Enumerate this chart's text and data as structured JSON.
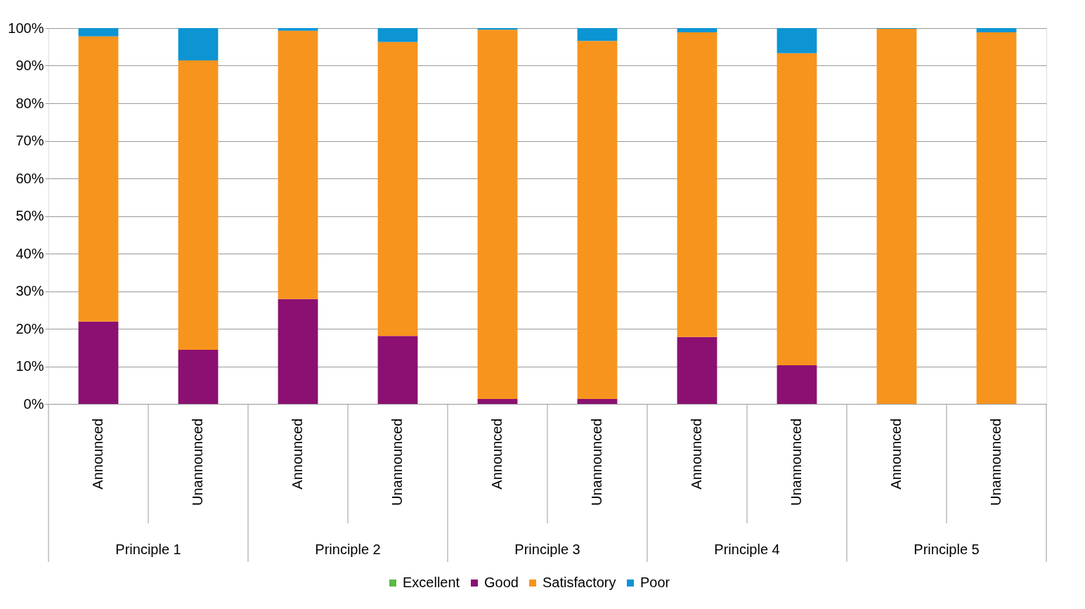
{
  "chart_data": {
    "type": "bar",
    "stacked": true,
    "categories": [
      "Announced",
      "Unannounced",
      "Announced",
      "Unannounced",
      "Announced",
      "Unannounced",
      "Announced",
      "Unannounced",
      "Announced",
      "Unannounced"
    ],
    "annotations": [
      "Principle 1",
      "Principle 2",
      "Principle 3",
      "Principle 4",
      "Principle 5"
    ],
    "series": [
      {
        "name": "Excellent",
        "color": "#5bb946",
        "values": [
          0,
          0,
          0,
          0,
          0,
          0,
          0,
          0,
          0,
          0
        ]
      },
      {
        "name": "Good",
        "color": "#8b1072",
        "values": [
          21.9,
          14.4,
          27.9,
          18.1,
          1.3,
          1.3,
          17.8,
          10.3,
          0,
          0
        ]
      },
      {
        "name": "Satisfactory",
        "color": "#f7941d",
        "values": [
          75.9,
          77.0,
          71.4,
          78.2,
          98.3,
          95.3,
          81.1,
          83.0,
          99.8,
          98.9
        ]
      },
      {
        "name": "Poor",
        "color": "#0d94d2",
        "values": [
          2.2,
          8.6,
          0.7,
          3.7,
          0.4,
          3.4,
          1.1,
          6.7,
          0.2,
          1.1
        ]
      }
    ],
    "ylim": [
      0,
      100
    ],
    "yticks": [
      {
        "value": 0,
        "label": "0%"
      },
      {
        "value": 10,
        "label": "10%"
      },
      {
        "value": 20,
        "label": "20%"
      },
      {
        "value": 30,
        "label": "30%"
      },
      {
        "value": 40,
        "label": "40%"
      },
      {
        "value": 50,
        "label": "50%"
      },
      {
        "value": 60,
        "label": "60%"
      },
      {
        "value": 70,
        "label": "70%"
      },
      {
        "value": 80,
        "label": "80%"
      },
      {
        "value": 90,
        "label": "90%"
      },
      {
        "value": 100,
        "label": "100%"
      }
    ],
    "grid": "y",
    "legend": "bottom"
  }
}
